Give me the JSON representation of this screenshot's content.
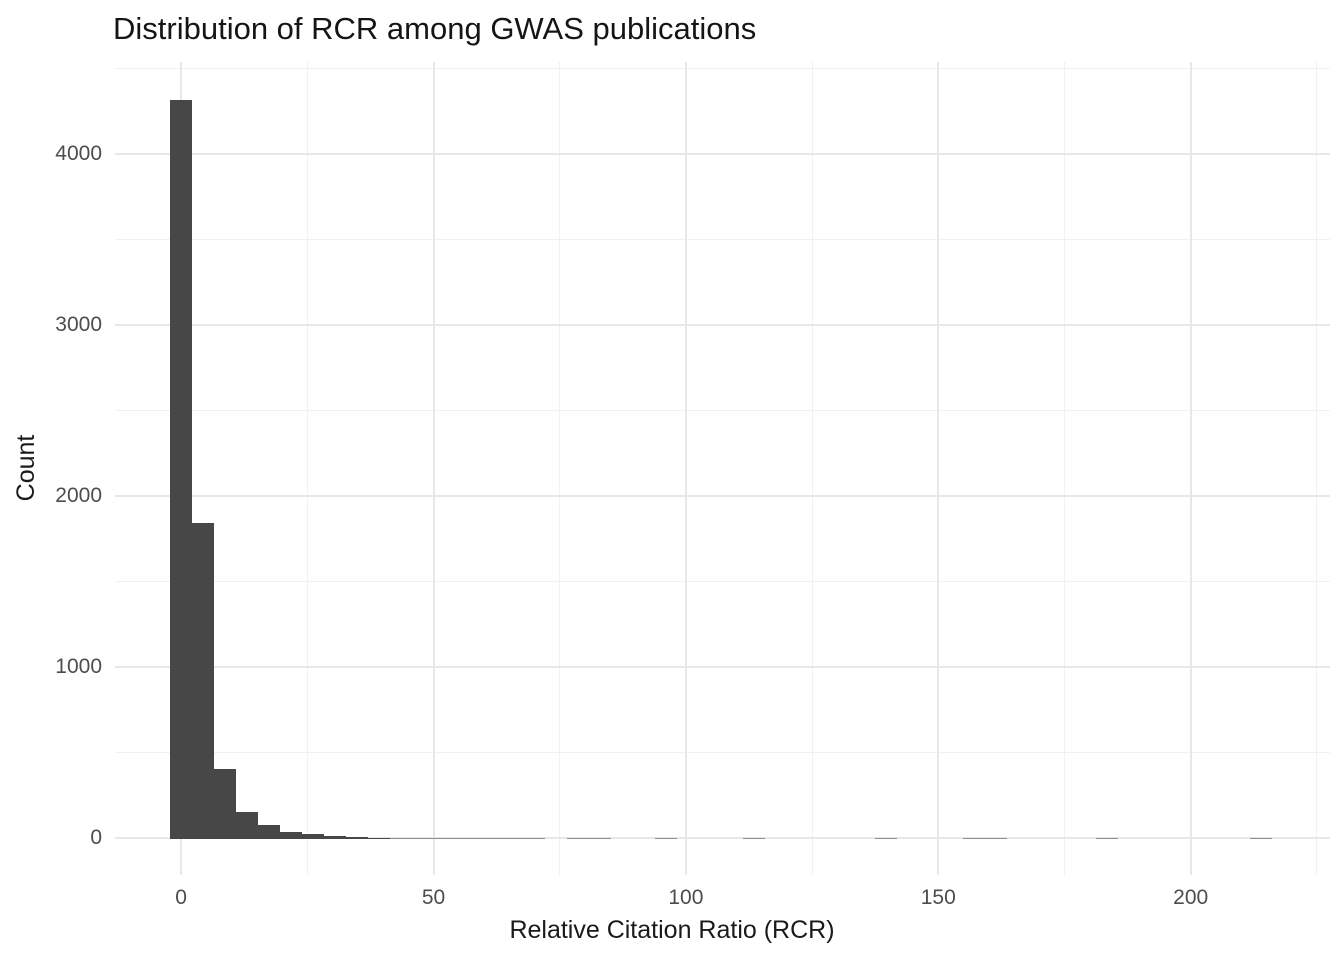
{
  "chart_data": {
    "type": "histogram",
    "title": "Distribution of RCR among GWAS publications",
    "xlabel": "Relative Citation Ratio (RCR)",
    "ylabel": "Count",
    "x_ticks": [
      0,
      50,
      100,
      150,
      200
    ],
    "x_minor_ticks": [
      25,
      75,
      125,
      175,
      225
    ],
    "y_ticks": [
      0,
      1000,
      2000,
      3000,
      4000
    ],
    "y_minor_ticks": [
      500,
      1500,
      2500,
      3500,
      4500
    ],
    "xlim": [
      -13.1,
      227.6
    ],
    "ylim": [
      -216,
      4536
    ],
    "grid": true,
    "legend_position": "none",
    "bin_start": -2.18,
    "bin_width": 4.365,
    "counts": [
      4320,
      1850,
      410,
      160,
      80,
      42,
      30,
      20,
      13,
      9,
      7,
      5,
      2,
      4,
      2,
      3,
      3,
      0,
      1,
      1,
      0,
      0,
      1,
      0,
      0,
      0,
      1,
      0,
      0,
      0,
      0,
      0,
      1,
      0,
      0,
      0,
      2,
      1,
      0,
      0,
      0,
      0,
      1,
      0,
      0,
      0,
      0,
      0,
      0,
      1
    ],
    "colors": {
      "bar_fill": "#474747",
      "grid_major": "#E7E7E7",
      "grid_minor": "#F1F1F1",
      "axis_text": "#4D4D4D",
      "title_text": "#151515",
      "background": "#FFFFFF"
    }
  }
}
